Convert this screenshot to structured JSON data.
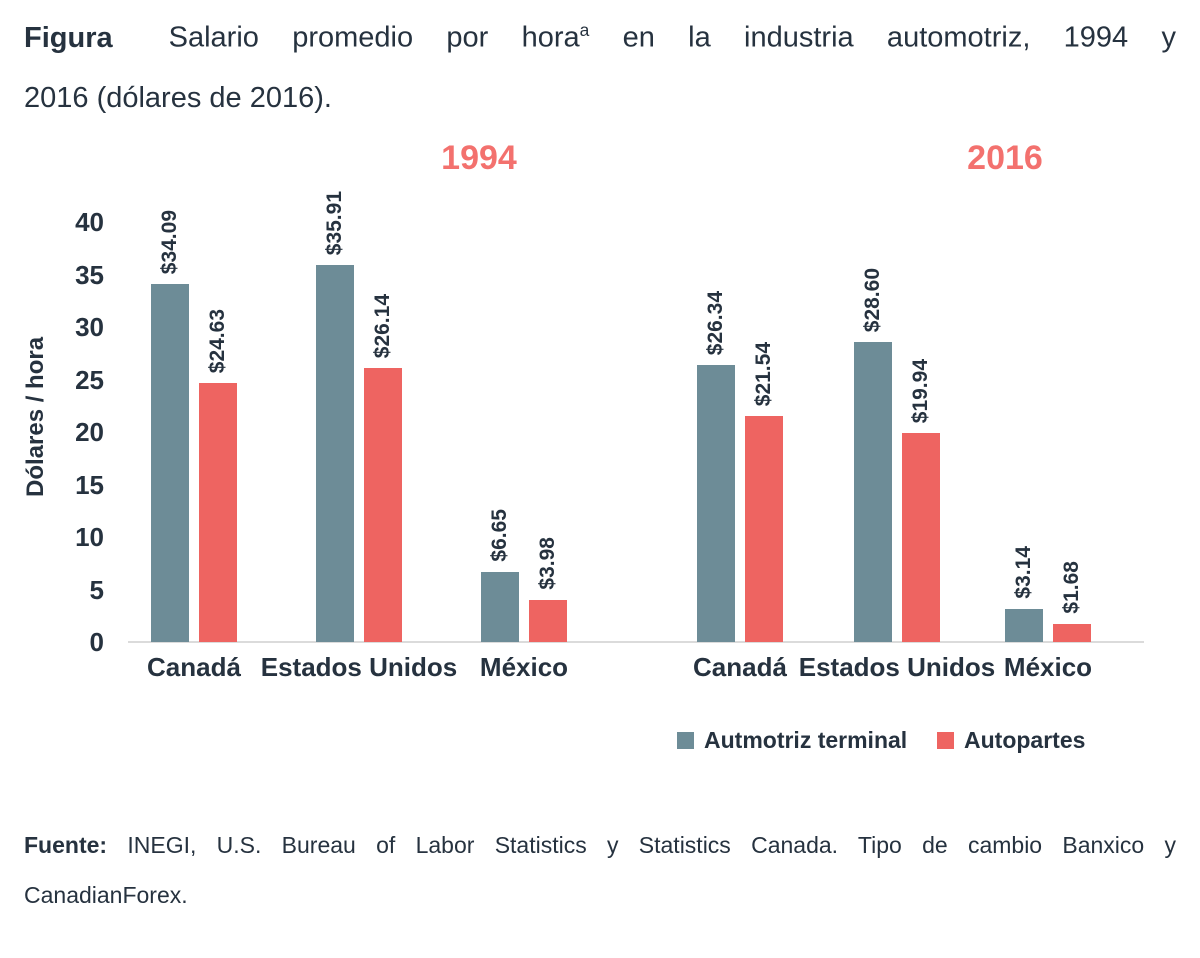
{
  "title": {
    "label": "Figura",
    "line1_before_sup": "Salario promedio por hora",
    "sup": "a",
    "line1_after_sup": " en la industria automotriz, 1994 y",
    "line2": "2016 (dólares de 2016)."
  },
  "source": {
    "label": "Fuente:",
    "line1": " INEGI, U.S. Bureau of Labor Statistics y Statistics Canada. Tipo de cambio Banxico y",
    "line2": "CanadianForex."
  },
  "colors": {
    "terminal_series": "#6D8C97",
    "autopartes_series": "#EE6461",
    "year_label": "#F3716E",
    "text": "#26323F",
    "baseline": "#DBDBDB"
  },
  "legend": {
    "items": [
      {
        "label": "Autmotriz terminal",
        "color": "#6D8C97"
      },
      {
        "label": "Autopartes",
        "color": "#EE6461"
      }
    ]
  },
  "chart_data": {
    "type": "bar",
    "title": "Salario promedio por hora en la industria automotriz, 1994 y 2016 (dólares de 2016)",
    "ylabel": "Dólares / hora",
    "ylim": [
      0,
      40
    ],
    "yticks": [
      0,
      5,
      10,
      15,
      20,
      25,
      30,
      35,
      40
    ],
    "grid": false,
    "value_prefix": "$",
    "legend_position": "bottom-right",
    "groups": [
      {
        "label": "1994",
        "categories": [
          "Canadá",
          "Estados Unidos",
          "México"
        ],
        "series": [
          {
            "name": "Autmotriz terminal",
            "color": "#6D8C97",
            "values": [
              34.09,
              35.91,
              6.65
            ]
          },
          {
            "name": "Autopartes",
            "color": "#EE6461",
            "values": [
              24.63,
              26.14,
              3.98
            ]
          }
        ]
      },
      {
        "label": "2016",
        "categories": [
          "Canadá",
          "Estados Unidos",
          "México"
        ],
        "series": [
          {
            "name": "Autmotriz terminal",
            "color": "#6D8C97",
            "values": [
              26.34,
              28.6,
              3.14
            ]
          },
          {
            "name": "Autopartes",
            "color": "#EE6461",
            "values": [
              21.54,
              19.94,
              1.68
            ]
          }
        ]
      }
    ]
  }
}
